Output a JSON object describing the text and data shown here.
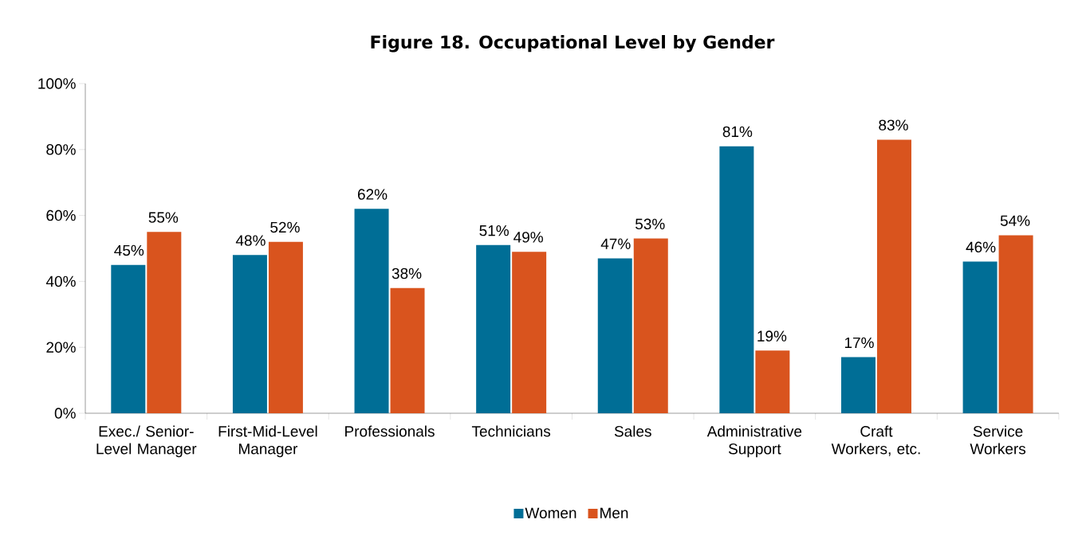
{
  "chart_data": {
    "type": "bar",
    "title": "Figure 18. Occupational Level by Gender",
    "categories": [
      "Exec./ Senior-Level Manager",
      "First-Mid-Level Manager",
      "Professionals",
      "Technicians",
      "Sales",
      "Administrative Support",
      "Craft Workers, etc.",
      "Service Workers"
    ],
    "series": [
      {
        "name": "Women",
        "color": "#006e96",
        "values": [
          45,
          48,
          62,
          51,
          47,
          81,
          17,
          46
        ],
        "value_labels": [
          "45%",
          "48%",
          "62%",
          "51%",
          "47%",
          "81%",
          "17%",
          "46%"
        ]
      },
      {
        "name": "Men",
        "color": "#d9541e",
        "values": [
          55,
          52,
          38,
          49,
          53,
          19,
          83,
          54
        ],
        "value_labels": [
          "55%",
          "52%",
          "38%",
          "49%",
          "53%",
          "19%",
          "83%",
          "54%"
        ]
      }
    ],
    "ylim": [
      0,
      100
    ],
    "yticks": [
      {
        "value": 0,
        "label": "0%"
      },
      {
        "value": 20,
        "label": "20%"
      },
      {
        "value": 40,
        "label": "40%"
      },
      {
        "value": 60,
        "label": "60%"
      },
      {
        "value": 80,
        "label": "80%"
      },
      {
        "value": 100,
        "label": "100%"
      }
    ],
    "grid": false,
    "legend": "bottom"
  }
}
